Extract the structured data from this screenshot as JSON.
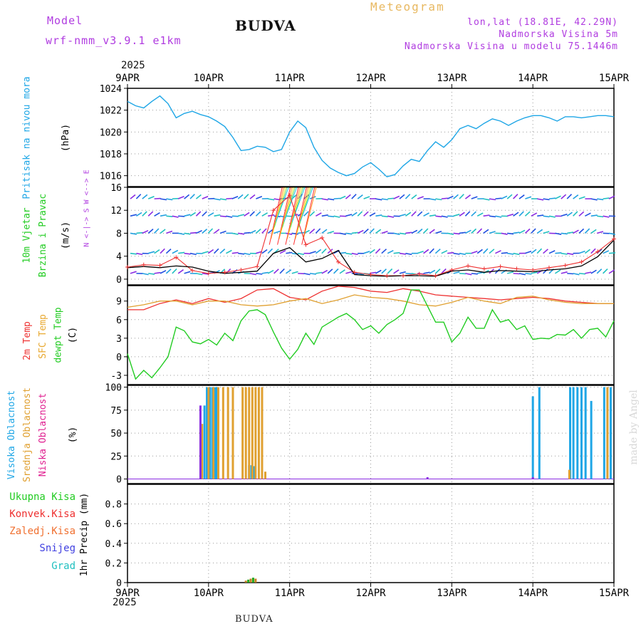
{
  "header": {
    "model_label": "Model",
    "model_name": "wrf-nmm_v3.9.1 e1km",
    "station": "BUDVA",
    "chart_kind": "Meteogram",
    "lonlat": "lon,lat (18.81E, 42.29N)",
    "elevation": "Nadmorska Visina 5m",
    "model_elevation": "Nadmorska Visina u modelu 75.1446m",
    "year_top": "2025",
    "year_bottom": "2025",
    "footer_station": "BUDVA",
    "credit": "made by Angel"
  },
  "colors": {
    "pressure": "#1ea6e6",
    "temp2m": "#ee3030",
    "sfc": "#e0a030",
    "dewpt": "#22cc22",
    "wind_speed": "#000000",
    "gust": "#ee3030"
  },
  "chart_data": [
    {
      "type": "line",
      "panel": "pressure",
      "labels": [
        "Pritisak na nivou mora",
        "(hPa)"
      ],
      "x_unit": "days since 9APR 00",
      "xlim": [
        0,
        6
      ],
      "ylim": [
        1015,
        1024
      ],
      "yticks": [
        1016,
        1018,
        1020,
        1022,
        1024
      ],
      "series": [
        {
          "x": [
            0,
            0.1,
            0.2,
            0.3,
            0.4,
            0.5,
            0.6,
            0.7,
            0.8,
            0.9,
            1.0,
            1.1,
            1.2,
            1.3,
            1.4,
            1.5,
            1.6,
            1.7,
            1.8,
            1.9,
            2.0,
            2.1,
            2.2,
            2.3,
            2.4,
            2.5,
            2.6,
            2.7,
            2.8,
            2.9,
            3.0,
            3.1,
            3.2,
            3.3,
            3.4,
            3.5,
            3.6,
            3.7,
            3.8,
            3.9,
            4.0,
            4.1,
            4.2,
            4.3,
            4.4,
            4.5,
            4.6,
            4.7,
            4.8,
            4.9,
            5.0,
            5.1,
            5.2,
            5.3,
            5.4,
            5.5,
            5.6,
            5.7,
            5.8,
            5.9,
            6.0
          ],
          "values": [
            1022.8,
            1022.4,
            1022.2,
            1022.8,
            1023.3,
            1022.6,
            1021.3,
            1021.7,
            1021.9,
            1021.6,
            1021.4,
            1021.0,
            1020.5,
            1019.5,
            1018.3,
            1018.4,
            1018.7,
            1018.6,
            1018.2,
            1018.4,
            1020.0,
            1021.0,
            1020.4,
            1018.6,
            1017.4,
            1016.7,
            1016.3,
            1016.0,
            1016.2,
            1016.8,
            1017.2,
            1016.6,
            1015.9,
            1016.1,
            1016.9,
            1017.5,
            1017.3,
            1018.3,
            1019.1,
            1018.6,
            1019.3,
            1020.3,
            1020.6,
            1020.3,
            1020.8,
            1021.2,
            1021.0,
            1020.6,
            1021.0,
            1021.3,
            1021.5,
            1021.5,
            1021.3,
            1021.0,
            1021.4,
            1021.4,
            1021.3,
            1021.4,
            1021.5,
            1021.5,
            1021.4
          ]
        }
      ]
    },
    {
      "type": "line",
      "panel": "wind",
      "labels": [
        "10m Vjetar",
        "Brzina i Pravac",
        "(m/s)"
      ],
      "compass": "N <-|-> S   W <--> E",
      "xlim": [
        0,
        6
      ],
      "ylim": [
        -1,
        16
      ],
      "yticks": [
        0,
        4,
        8,
        12,
        16
      ],
      "series": [
        {
          "id": "speed",
          "x": [
            0,
            0.2,
            0.4,
            0.6,
            0.8,
            1.0,
            1.2,
            1.4,
            1.6,
            1.8,
            2.0,
            2.2,
            2.4,
            2.6,
            2.8,
            3.0,
            3.2,
            3.4,
            3.6,
            3.8,
            4.0,
            4.2,
            4.4,
            4.6,
            4.8,
            5.0,
            5.2,
            5.4,
            5.6,
            5.8,
            6.0
          ],
          "values": [
            2.0,
            2.2,
            2.0,
            2.3,
            2.1,
            1.4,
            1.0,
            1.2,
            1.4,
            4.5,
            5.5,
            3.0,
            3.6,
            5.0,
            0.8,
            0.6,
            0.5,
            0.6,
            0.6,
            0.5,
            1.4,
            1.6,
            1.2,
            1.5,
            1.4,
            1.3,
            1.6,
            1.8,
            2.3,
            3.9,
            6.8
          ]
        },
        {
          "id": "gust",
          "x": [
            0,
            0.2,
            0.4,
            0.6,
            0.8,
            1.0,
            1.2,
            1.4,
            1.6,
            1.8,
            2.0,
            2.2,
            2.4,
            2.6,
            2.8,
            3.0,
            3.2,
            3.4,
            3.6,
            3.8,
            4.0,
            4.2,
            4.4,
            4.6,
            4.8,
            5.0,
            5.2,
            5.4,
            5.6,
            5.8,
            6.0
          ],
          "values": [
            2.1,
            2.5,
            2.4,
            3.8,
            1.5,
            1.0,
            1.2,
            1.6,
            2.2,
            12.0,
            14.6,
            6.0,
            7.2,
            3.0,
            1.2,
            0.8,
            0.6,
            0.6,
            0.9,
            0.6,
            1.6,
            2.3,
            1.8,
            2.2,
            1.8,
            1.6,
            2.0,
            2.4,
            3.0,
            4.8,
            7.0
          ]
        }
      ],
      "barb_levels": [
        1,
        4.5,
        8,
        11,
        14
      ]
    },
    {
      "type": "line",
      "panel": "temperature",
      "labels": [
        "2m Temp",
        "SFC Temp",
        "dewpt Temp",
        "(C)"
      ],
      "xlim": [
        0,
        6
      ],
      "ylim": [
        -4.5,
        11.5
      ],
      "yticks": [
        -3,
        0,
        3,
        6,
        9
      ],
      "series": [
        {
          "id": "temp2m",
          "x": [
            0,
            0.2,
            0.4,
            0.6,
            0.8,
            1.0,
            1.2,
            1.4,
            1.6,
            1.8,
            2.0,
            2.2,
            2.4,
            2.6,
            2.8,
            3.0,
            3.2,
            3.4,
            3.6,
            3.8,
            4.0,
            4.2,
            4.4,
            4.6,
            4.8,
            5.0,
            5.2,
            5.4,
            5.6,
            5.8,
            6.0
          ],
          "values": [
            7.6,
            7.6,
            8.6,
            9.2,
            8.6,
            9.4,
            8.8,
            9.4,
            10.8,
            11.0,
            9.6,
            9.2,
            10.6,
            11.4,
            11.2,
            10.6,
            10.4,
            11.0,
            10.6,
            10.0,
            9.8,
            9.6,
            9.4,
            9.2,
            9.4,
            9.6,
            9.4,
            9.0,
            8.8,
            8.6,
            8.6
          ]
        },
        {
          "id": "sfc",
          "x": [
            0,
            0.2,
            0.4,
            0.6,
            0.8,
            1.0,
            1.2,
            1.4,
            1.6,
            1.8,
            2.0,
            2.2,
            2.4,
            2.6,
            2.8,
            3.0,
            3.2,
            3.4,
            3.6,
            3.8,
            4.0,
            4.2,
            4.4,
            4.6,
            4.8,
            5.0,
            5.2,
            5.4,
            5.6,
            5.8,
            6.0
          ],
          "values": [
            8.0,
            8.4,
            9.0,
            9.0,
            8.4,
            9.0,
            9.0,
            8.4,
            8.2,
            8.4,
            9.0,
            9.4,
            8.6,
            9.2,
            10.0,
            9.6,
            9.4,
            9.0,
            8.4,
            8.2,
            8.8,
            9.6,
            9.0,
            8.6,
            9.6,
            9.8,
            9.2,
            8.8,
            8.6,
            8.6,
            8.6
          ]
        },
        {
          "id": "dewpt",
          "x": [
            0,
            0.1,
            0.2,
            0.3,
            0.4,
            0.5,
            0.6,
            0.7,
            0.8,
            0.9,
            1.0,
            1.1,
            1.2,
            1.3,
            1.4,
            1.5,
            1.6,
            1.7,
            1.8,
            1.9,
            2.0,
            2.1,
            2.2,
            2.3,
            2.4,
            2.5,
            2.6,
            2.7,
            2.8,
            2.9,
            3.0,
            3.1,
            3.2,
            3.3,
            3.4,
            3.5,
            3.6,
            3.7,
            3.8,
            3.9,
            4.0,
            4.1,
            4.2,
            4.3,
            4.4,
            4.5,
            4.6,
            4.7,
            4.8,
            4.9,
            5.0,
            5.1,
            5.2,
            5.3,
            5.4,
            5.5,
            5.6,
            5.7,
            5.8,
            5.9,
            6.0
          ],
          "values": [
            0.5,
            -3.6,
            -2.2,
            -3.4,
            -1.8,
            0.0,
            4.8,
            4.2,
            2.4,
            2.1,
            2.8,
            1.9,
            3.8,
            2.6,
            5.8,
            7.4,
            7.6,
            6.8,
            4.0,
            1.4,
            -0.4,
            1.2,
            3.8,
            2.0,
            4.8,
            5.6,
            6.4,
            7.0,
            6.0,
            4.4,
            5.0,
            3.8,
            5.2,
            6.0,
            7.0,
            10.8,
            10.8,
            8.2,
            5.6,
            5.6,
            2.4,
            3.8,
            6.4,
            4.6,
            4.6,
            7.6,
            5.6,
            6.0,
            4.4,
            5.0,
            2.8,
            3.0,
            2.9,
            3.6,
            3.5,
            4.4,
            3.0,
            4.4,
            4.6,
            3.2,
            5.8
          ]
        }
      ]
    },
    {
      "type": "bar",
      "panel": "clouds",
      "labels": [
        "Visoka Oblacnost",
        "Srednja Oblacnost",
        "Niska Oblacnost",
        "(%)"
      ],
      "xlim": [
        0,
        6
      ],
      "ylim": [
        -5,
        102
      ],
      "yticks": [
        0,
        25,
        50,
        75,
        100
      ],
      "series": [
        {
          "id": "high",
          "x": [
            0.95,
            0.98,
            1.0,
            1.02,
            1.05,
            1.08,
            1.1,
            1.5,
            1.53,
            1.56,
            5.0,
            5.08,
            5.46,
            5.5,
            5.55,
            5.6,
            5.65,
            5.72,
            5.88,
            5.92,
            5.96
          ],
          "values": [
            80,
            100,
            100,
            100,
            100,
            100,
            100,
            15,
            15,
            14,
            90,
            100,
            100,
            100,
            100,
            100,
            100,
            85,
            100,
            100,
            100
          ]
        },
        {
          "id": "mid",
          "x": [
            0.92,
            1.0,
            1.06,
            1.12,
            1.18,
            1.24,
            1.3,
            1.42,
            1.46,
            1.5,
            1.54,
            1.58,
            1.62,
            1.66,
            1.7,
            5.45,
            5.92
          ],
          "values": [
            60,
            100,
            100,
            100,
            100,
            100,
            100,
            100,
            100,
            100,
            100,
            100,
            100,
            100,
            8,
            10,
            100
          ]
        },
        {
          "id": "low",
          "x": [
            0.9,
            1.88,
            3.7,
            5.0
          ],
          "values": [
            80,
            0,
            2,
            2
          ]
        }
      ]
    },
    {
      "type": "bar",
      "panel": "precip",
      "labels": [
        "Ukupna Kisa",
        "Konvek.Kisa",
        "Zaledj.Kisa",
        "Snijeg",
        "Grad",
        "1hr Precip (mm)"
      ],
      "xlim": [
        0,
        6
      ],
      "ylim": [
        0,
        1.0
      ],
      "yticks": [
        0,
        0.2,
        0.4,
        0.6,
        0.8
      ],
      "series": [
        {
          "id": "total",
          "x": [
            1.46,
            1.49,
            1.52,
            1.55,
            1.58
          ],
          "values": [
            0.02,
            0.03,
            0.04,
            0.05,
            0.04
          ]
        }
      ]
    }
  ],
  "x_axis": {
    "tick_labels": [
      "9APR",
      "10APR",
      "11APR",
      "12APR",
      "13APR",
      "14APR",
      "15APR"
    ]
  },
  "legend_colors": {
    "Pritisak na nivou mora": "#1ea6e6",
    "10m Vjetar": "#22cc22",
    "Brzina i Pravac": "#22cc22",
    "(m/s)": "#000000",
    "(hPa)": "#000000",
    "2m Temp": "#ee3030",
    "SFC Temp": "#e8a830",
    "dewpt Temp": "#22cc22",
    "(C)": "#000000",
    "Visoka Oblacnost": "#1ea6e6",
    "Srednja Oblacnost": "#e0a030",
    "Niska Oblacnost": "#e02090",
    "(%)": "#000000",
    "Ukupna Kisa": "#22cc22",
    "Konvek.Kisa": "#ee3030",
    "Zaledj.Kisa": "#f07030",
    "Snijeg": "#4040e0",
    "Grad": "#20c0c0",
    "1hr Precip (mm)": "#000000"
  }
}
